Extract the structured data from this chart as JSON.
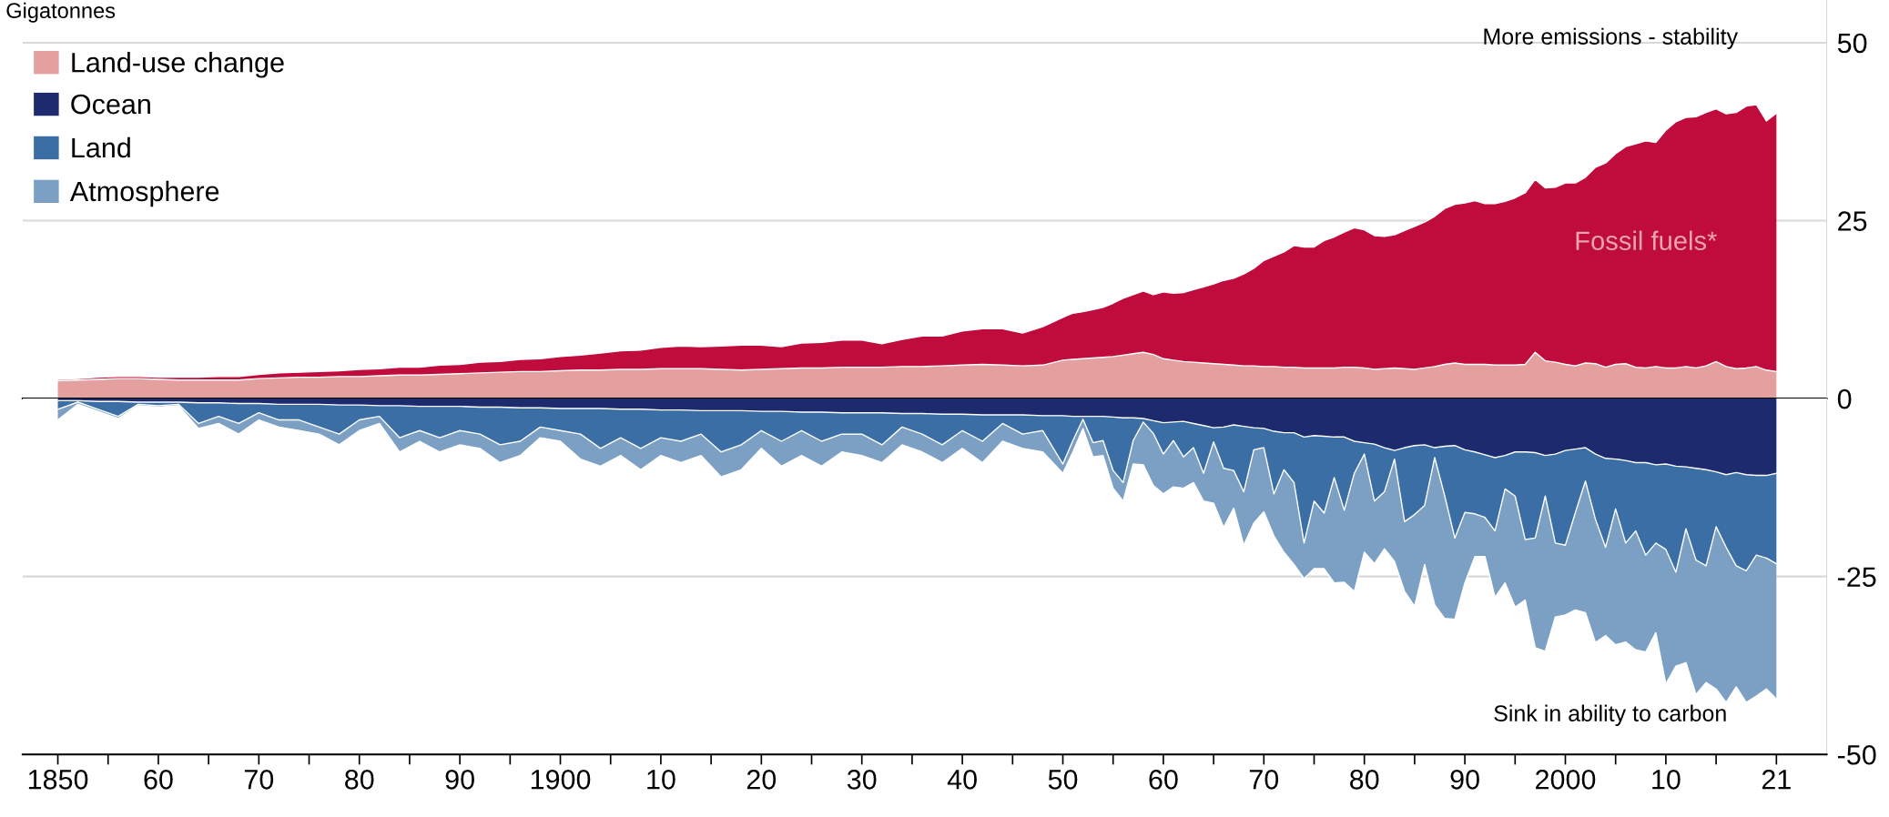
{
  "chart_data": [
    {
      "type": "area",
      "stacked": true,
      "ylabel": "Gigatonnes",
      "annotations": [
        "More emissions - stability"
      ],
      "x": [
        1850,
        1852,
        1854,
        1856,
        1858,
        1860,
        1862,
        1864,
        1866,
        1868,
        1870,
        1872,
        1874,
        1876,
        1878,
        1880,
        1882,
        1884,
        1886,
        1888,
        1890,
        1892,
        1894,
        1896,
        1898,
        1900,
        1902,
        1904,
        1906,
        1908,
        1910,
        1912,
        1914,
        1916,
        1918,
        1920,
        1922,
        1924,
        1926,
        1928,
        1930,
        1932,
        1934,
        1936,
        1938,
        1940,
        1942,
        1944,
        1946,
        1948,
        1950,
        1951,
        1952,
        1953,
        1954,
        1955,
        1956,
        1957,
        1958,
        1959,
        1960,
        1961,
        1962,
        1963,
        1964,
        1965,
        1966,
        1967,
        1968,
        1969,
        1970,
        1971,
        1972,
        1973,
        1974,
        1975,
        1976,
        1977,
        1978,
        1979,
        1980,
        1981,
        1982,
        1983,
        1984,
        1985,
        1986,
        1987,
        1988,
        1989,
        1990,
        1991,
        1992,
        1993,
        1994,
        1995,
        1996,
        1997,
        1998,
        1999,
        2000,
        2001,
        2002,
        2003,
        2004,
        2005,
        2006,
        2007,
        2008,
        2009,
        2010,
        2011,
        2012,
        2013,
        2014,
        2015,
        2016,
        2017,
        2018,
        2019,
        2020,
        2021
      ],
      "series": [
        {
          "name": "Land-use change",
          "color": "#e4a09f",
          "values": [
            2.5,
            2.6,
            2.7,
            2.8,
            2.8,
            2.7,
            2.6,
            2.6,
            2.6,
            2.6,
            2.8,
            2.9,
            3.0,
            3.0,
            3.1,
            3.1,
            3.2,
            3.3,
            3.3,
            3.4,
            3.5,
            3.6,
            3.7,
            3.8,
            3.8,
            3.9,
            4.0,
            4.0,
            4.1,
            4.1,
            4.2,
            4.2,
            4.2,
            4.1,
            4.0,
            4.1,
            4.2,
            4.3,
            4.3,
            4.4,
            4.4,
            4.4,
            4.5,
            4.5,
            4.6,
            4.7,
            4.8,
            4.7,
            4.6,
            4.7,
            5.4,
            5.5,
            5.6,
            5.7,
            5.8,
            5.9,
            6.1,
            6.3,
            6.5,
            6.2,
            5.6,
            5.4,
            5.2,
            5.1,
            5.0,
            4.9,
            4.8,
            4.7,
            4.6,
            4.6,
            4.5,
            4.5,
            4.4,
            4.4,
            4.3,
            4.3,
            4.3,
            4.3,
            4.4,
            4.4,
            4.3,
            4.1,
            4.2,
            4.3,
            4.2,
            4.1,
            4.3,
            4.5,
            4.8,
            5.0,
            4.8,
            4.8,
            4.8,
            4.7,
            4.7,
            4.7,
            4.8,
            6.5,
            5.3,
            5.1,
            4.8,
            4.6,
            5.0,
            4.9,
            4.4,
            4.8,
            4.9,
            4.4,
            4.3,
            4.5,
            4.3,
            4.3,
            4.5,
            4.3,
            4.6,
            5.2,
            4.5,
            4.2,
            4.3,
            4.5,
            4.0,
            3.8
          ]
        },
        {
          "name": "Fossil fuels*",
          "color": "#c00c3c",
          "values": [
            0.2,
            0.2,
            0.3,
            0.3,
            0.3,
            0.3,
            0.4,
            0.4,
            0.5,
            0.5,
            0.6,
            0.7,
            0.7,
            0.8,
            0.8,
            1.0,
            1.0,
            1.1,
            1.1,
            1.3,
            1.3,
            1.5,
            1.5,
            1.7,
            1.8,
            2.0,
            2.1,
            2.4,
            2.6,
            2.7,
            3.0,
            3.2,
            3.1,
            3.3,
            3.5,
            3.4,
            3.1,
            3.5,
            3.6,
            3.8,
            3.8,
            3.3,
            3.8,
            4.3,
            4.2,
            4.8,
            5.0,
            5.1,
            4.6,
            5.4,
            6.0,
            6.5,
            6.6,
            6.8,
            7.0,
            7.5,
            8.0,
            8.3,
            8.6,
            8.4,
            9.4,
            9.4,
            9.7,
            10.2,
            10.7,
            11.2,
            11.8,
            12.2,
            12.9,
            13.7,
            14.9,
            15.5,
            16.2,
            17.1,
            17.0,
            17.0,
            17.9,
            18.4,
            19.0,
            19.6,
            19.4,
            18.8,
            18.6,
            18.7,
            19.4,
            20.1,
            20.5,
            21.1,
            21.9,
            22.3,
            22.7,
            23.0,
            22.6,
            22.7,
            23.0,
            23.5,
            24.1,
            24.3,
            24.3,
            24.6,
            25.5,
            25.7,
            26.1,
            27.6,
            28.7,
            29.6,
            30.5,
            31.4,
            31.9,
            31.5,
            33.4,
            34.6,
            35.0,
            35.3,
            35.6,
            35.5,
            35.5,
            36.0,
            36.8,
            36.8,
            35.0,
            36.3
          ]
        }
      ],
      "xlim": [
        1846.5,
        2026
      ],
      "ylim": [
        0,
        56
      ],
      "yticks": [
        50,
        25,
        0
      ],
      "tick_labels": "y",
      "grid": "y",
      "legend": "top left"
    },
    {
      "type": "area",
      "stacked": true,
      "annotations": [
        "Sink in ability to carbon"
      ],
      "x": [
        1850,
        1852,
        1854,
        1856,
        1858,
        1860,
        1862,
        1864,
        1866,
        1868,
        1870,
        1872,
        1874,
        1876,
        1878,
        1880,
        1882,
        1884,
        1886,
        1888,
        1890,
        1892,
        1894,
        1896,
        1898,
        1900,
        1902,
        1904,
        1906,
        1908,
        1910,
        1912,
        1914,
        1916,
        1918,
        1920,
        1922,
        1924,
        1926,
        1928,
        1930,
        1932,
        1934,
        1936,
        1938,
        1940,
        1942,
        1944,
        1946,
        1948,
        1950,
        1951,
        1952,
        1953,
        1954,
        1955,
        1956,
        1957,
        1958,
        1959,
        1960,
        1961,
        1962,
        1963,
        1964,
        1965,
        1966,
        1967,
        1968,
        1969,
        1970,
        1971,
        1972,
        1973,
        1974,
        1975,
        1976,
        1977,
        1978,
        1979,
        1980,
        1981,
        1982,
        1983,
        1984,
        1985,
        1986,
        1987,
        1988,
        1989,
        1990,
        1991,
        1992,
        1993,
        1994,
        1995,
        1996,
        1997,
        1998,
        1999,
        2000,
        2001,
        2002,
        2003,
        2004,
        2005,
        2006,
        2007,
        2008,
        2009,
        2010,
        2011,
        2012,
        2013,
        2014,
        2015,
        2016,
        2017,
        2018,
        2019,
        2020,
        2021
      ],
      "series": [
        {
          "name": "Ocean",
          "color": "#1e2a6e",
          "values": [
            -0.3,
            -0.3,
            -0.4,
            -0.4,
            -0.5,
            -0.5,
            -0.5,
            -0.6,
            -0.6,
            -0.7,
            -0.7,
            -0.8,
            -0.8,
            -0.8,
            -0.9,
            -0.9,
            -1.0,
            -1.0,
            -1.1,
            -1.1,
            -1.1,
            -1.2,
            -1.2,
            -1.3,
            -1.3,
            -1.4,
            -1.4,
            -1.4,
            -1.5,
            -1.5,
            -1.6,
            -1.6,
            -1.7,
            -1.7,
            -1.7,
            -1.8,
            -1.8,
            -1.9,
            -1.9,
            -2.0,
            -2.0,
            -2.0,
            -2.1,
            -2.1,
            -2.2,
            -2.2,
            -2.3,
            -2.3,
            -2.3,
            -2.4,
            -2.4,
            -2.5,
            -2.5,
            -2.5,
            -2.5,
            -2.6,
            -2.7,
            -2.7,
            -2.8,
            -3.1,
            -3.4,
            -3.3,
            -3.2,
            -3.5,
            -3.8,
            -4.1,
            -4.0,
            -3.7,
            -3.9,
            -4.1,
            -4.2,
            -4.6,
            -4.8,
            -4.8,
            -5.4,
            -5.2,
            -5.3,
            -5.4,
            -5.4,
            -6.0,
            -6.2,
            -6.4,
            -6.9,
            -7.3,
            -6.9,
            -6.6,
            -6.5,
            -6.9,
            -6.7,
            -6.6,
            -7.2,
            -7.5,
            -7.9,
            -8.3,
            -8.0,
            -7.5,
            -7.5,
            -7.6,
            -8.0,
            -7.8,
            -7.3,
            -7.1,
            -6.9,
            -7.8,
            -8.4,
            -8.5,
            -8.7,
            -9.0,
            -9.0,
            -9.3,
            -9.2,
            -9.5,
            -9.6,
            -9.8,
            -10.0,
            -10.3,
            -10.7,
            -10.4,
            -10.7,
            -10.8,
            -10.8,
            -10.5
          ]
        },
        {
          "name": "Land",
          "color": "#3a6ea5",
          "values": [
            -1.2,
            -0.2,
            -1.1,
            -2.1,
            -0.3,
            -0.5,
            -0.3,
            -2.9,
            -1.9,
            -2.8,
            -1.3,
            -2.2,
            -2.2,
            -3.2,
            -4.1,
            -2.1,
            -1.5,
            -4.5,
            -3.4,
            -4.4,
            -3.4,
            -3.8,
            -5.3,
            -4.7,
            -2.7,
            -3.1,
            -3.6,
            -5.6,
            -4.0,
            -5.5,
            -3.9,
            -4.4,
            -3.3,
            -5.8,
            -4.8,
            -2.7,
            -4.2,
            -2.6,
            -4.1,
            -3.0,
            -3.0,
            -4.5,
            -1.9,
            -2.9,
            -4.3,
            -2.3,
            -3.7,
            -1.2,
            -2.7,
            -2.1,
            -6.8,
            -3.4,
            -0.4,
            -3.7,
            -3.4,
            -7.5,
            -9.1,
            -3.2,
            -0.5,
            -1.8,
            -4.4,
            -2.6,
            -5.0,
            -3.4,
            -6.7,
            -2.0,
            -5.8,
            -6.4,
            -9.2,
            -3.1,
            -2.7,
            -8.8,
            -5.2,
            -7.0,
            -14.9,
            -9.2,
            -10.8,
            -5.7,
            -10.3,
            -4.5,
            -1.6,
            -8.0,
            -6.2,
            -1.2,
            -10.4,
            -9.7,
            -8.5,
            -1.4,
            -7.0,
            -13.0,
            -8.8,
            -8.7,
            -8.8,
            -10.3,
            -4.7,
            -6.2,
            -12.3,
            -12.0,
            -5.7,
            -12.5,
            -13.3,
            -8.9,
            -4.7,
            -9.2,
            -12.5,
            -7.0,
            -11.6,
            -9.6,
            -13.0,
            -11.0,
            -12.0,
            -14.9,
            -8.7,
            -12.9,
            -13.5,
            -7.7,
            -10.2,
            -13.1,
            -13.5,
            -11.2,
            -11.6,
            -12.7
          ]
        },
        {
          "name": "Atmosphere",
          "color": "#7ba0c4",
          "values": [
            -1.5,
            -0.3,
            -0.3,
            -0.3,
            -0.2,
            -0.2,
            -0.2,
            -0.7,
            -1.0,
            -1.5,
            -1.0,
            -1.0,
            -1.5,
            -1.0,
            -1.5,
            -1.5,
            -1.0,
            -2.0,
            -1.5,
            -2.0,
            -2.0,
            -2.0,
            -2.5,
            -2.0,
            -1.5,
            -1.5,
            -3.5,
            -2.5,
            -2.5,
            -3.0,
            -2.5,
            -3.0,
            -3.0,
            -3.5,
            -3.5,
            -2.5,
            -3.5,
            -3.5,
            -3.5,
            -2.5,
            -3.0,
            -2.5,
            -2.5,
            -2.5,
            -2.5,
            -2.5,
            -3.0,
            -2.5,
            -2.0,
            -3.0,
            -1.3,
            -1.6,
            -1.3,
            -2.0,
            -2.1,
            -2.5,
            -2.6,
            -3.3,
            -6.0,
            -7.3,
            -5.6,
            -6.5,
            -4.4,
            -4.9,
            -3.9,
            -8.6,
            -8.3,
            -5.3,
            -7.5,
            -10.3,
            -9.0,
            -5.9,
            -11.6,
            -11.5,
            -5.0,
            -9.5,
            -7.8,
            -14.8,
            -10.1,
            -16.6,
            -13.8,
            -8.8,
            -8.0,
            -14.4,
            -9.8,
            -12.9,
            -8.3,
            -20.7,
            -17.2,
            -11.4,
            -9.9,
            -6.0,
            -5.5,
            -9.3,
            -13.2,
            -15.6,
            -8.5,
            -15.4,
            -21.8,
            -10.4,
            -9.8,
            -13.7,
            -18.5,
            -17.3,
            -12.4,
            -19.1,
            -13.9,
            -16.7,
            -13.6,
            -12.6,
            -18.9,
            -13.2,
            -18.8,
            -18.9,
            -16.4,
            -22.8,
            -21.8,
            -17.0,
            -18.5,
            -19.8,
            -18.4,
            -19.0
          ]
        }
      ],
      "xlim": [
        1846.5,
        2026
      ],
      "xticks": [
        {
          "value": 1850,
          "label": "1850"
        },
        {
          "value": 1855,
          "label": null
        },
        {
          "value": 1860,
          "label": "60"
        },
        {
          "value": 1865,
          "label": null
        },
        {
          "value": 1870,
          "label": "70"
        },
        {
          "value": 1875,
          "label": null
        },
        {
          "value": 1880,
          "label": "80"
        },
        {
          "value": 1885,
          "label": null
        },
        {
          "value": 1890,
          "label": "90"
        },
        {
          "value": 1895,
          "label": null
        },
        {
          "value": 1900,
          "label": "1900"
        },
        {
          "value": 1905,
          "label": null
        },
        {
          "value": 1910,
          "label": "10"
        },
        {
          "value": 1915,
          "label": null
        },
        {
          "value": 1920,
          "label": "20"
        },
        {
          "value": 1925,
          "label": null
        },
        {
          "value": 1930,
          "label": "30"
        },
        {
          "value": 1935,
          "label": null
        },
        {
          "value": 1940,
          "label": "40"
        },
        {
          "value": 1945,
          "label": null
        },
        {
          "value": 1950,
          "label": "50"
        },
        {
          "value": 1955,
          "label": null
        },
        {
          "value": 1960,
          "label": "60"
        },
        {
          "value": 1965,
          "label": null
        },
        {
          "value": 1970,
          "label": "70"
        },
        {
          "value": 1975,
          "label": null
        },
        {
          "value": 1980,
          "label": "80"
        },
        {
          "value": 1985,
          "label": null
        },
        {
          "value": 1990,
          "label": "90"
        },
        {
          "value": 1995,
          "label": null
        },
        {
          "value": 2000,
          "label": "2000"
        },
        {
          "value": 2005,
          "label": null
        },
        {
          "value": 2010,
          "label": "10"
        },
        {
          "value": 2015,
          "label": null
        },
        {
          "value": 2021,
          "label": "21"
        }
      ],
      "ylim": [
        -50,
        0
      ],
      "yticks": [
        -25,
        -50
      ],
      "grid": "y",
      "legend": "top left"
    }
  ]
}
